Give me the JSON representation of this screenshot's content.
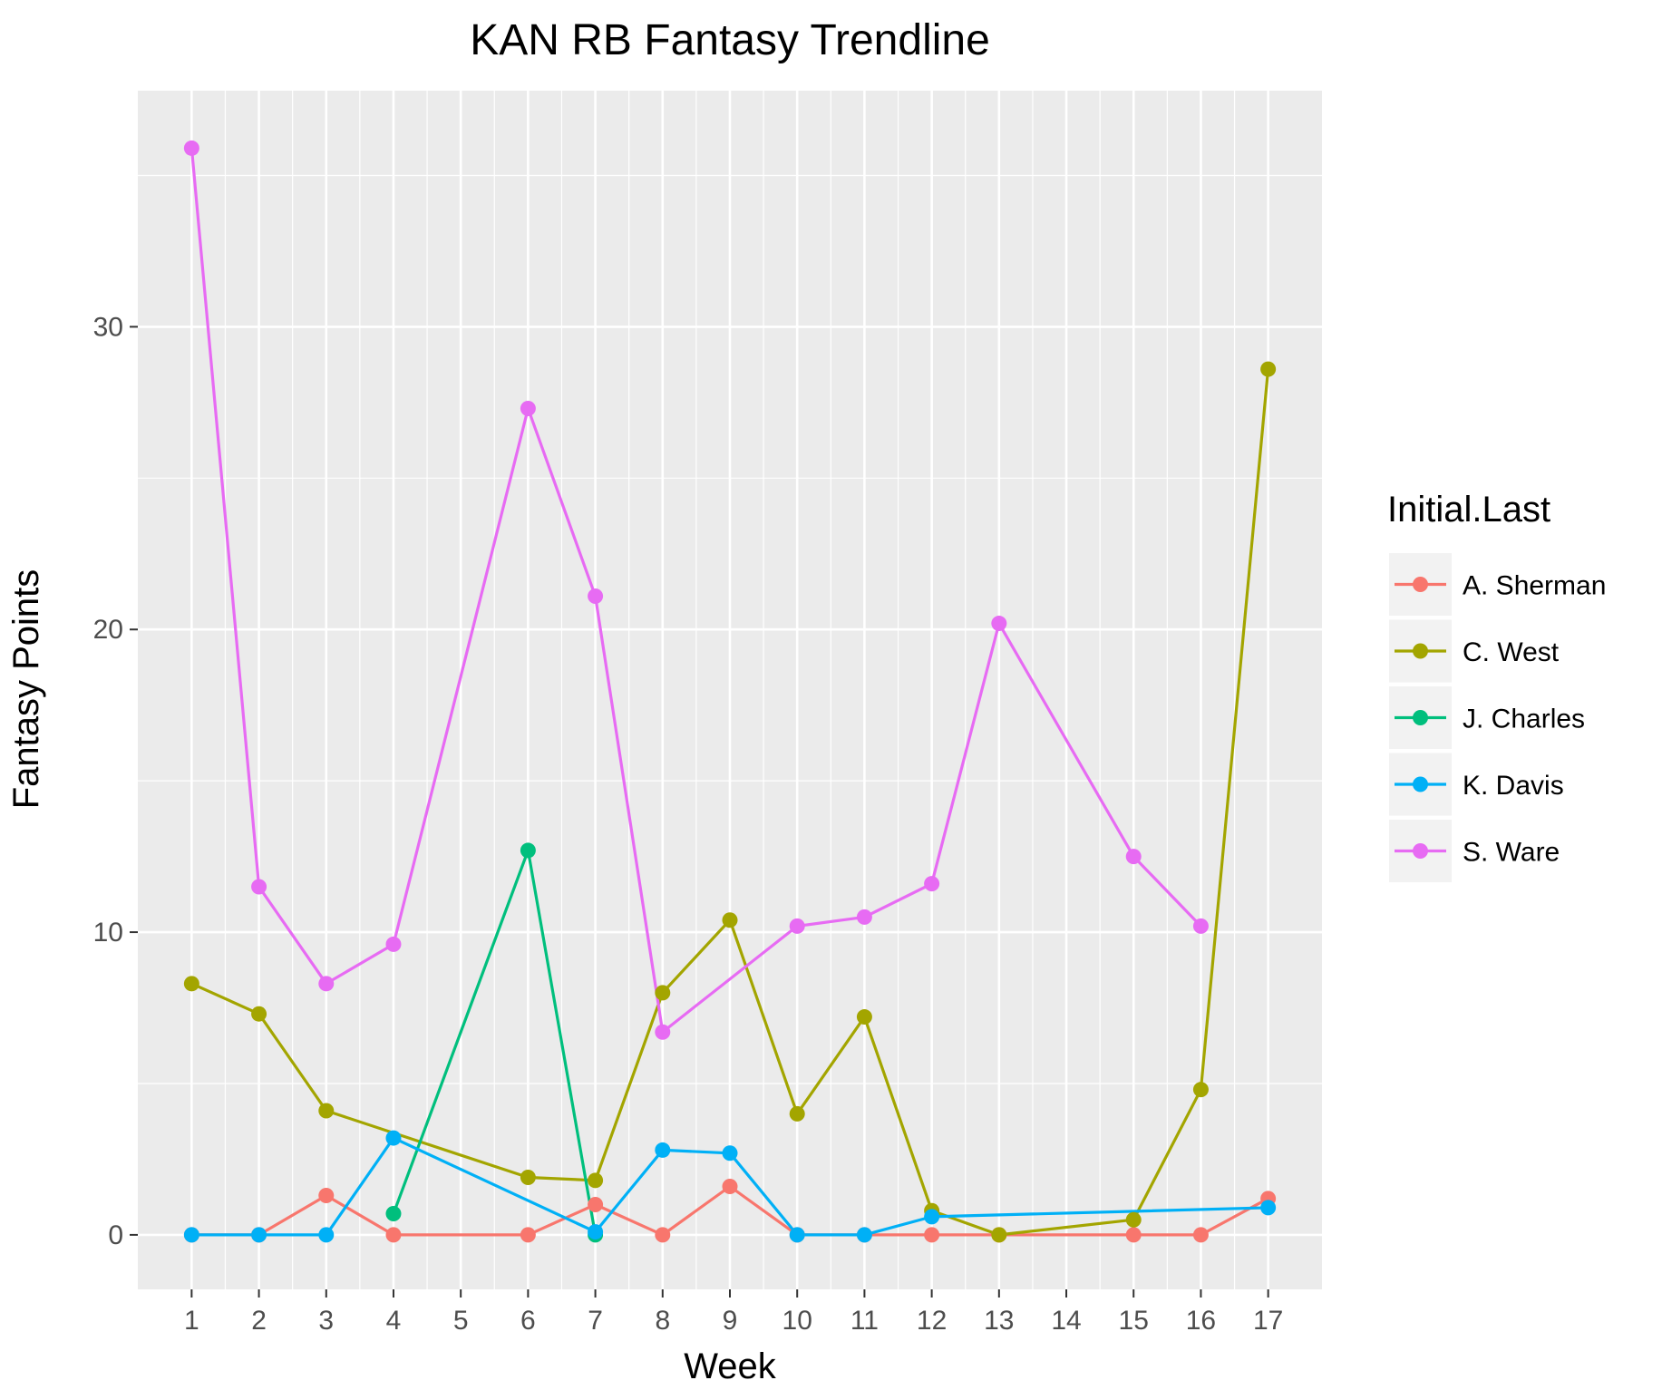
{
  "chart_data": {
    "type": "line",
    "title": "KAN RB Fantasy Trendline",
    "xlabel": "Week",
    "ylabel": "Fantasy Points",
    "x_ticks": [
      1,
      2,
      3,
      4,
      5,
      6,
      7,
      8,
      9,
      10,
      11,
      12,
      13,
      14,
      15,
      16,
      17
    ],
    "y_ticks": [
      0,
      10,
      20,
      30
    ],
    "xlim": [
      0.2,
      17.8
    ],
    "ylim": [
      -1.8,
      37.8
    ],
    "grid": true,
    "legend": {
      "title": "Initial.Last",
      "position": "right"
    },
    "series": [
      {
        "name": "A. Sherman",
        "color": "#F8766D",
        "points": [
          [
            1,
            0
          ],
          [
            2,
            0
          ],
          [
            3,
            1.3
          ],
          [
            4,
            0
          ],
          [
            6,
            0
          ],
          [
            7,
            1.0
          ],
          [
            8,
            0
          ],
          [
            9,
            1.6
          ],
          [
            10,
            0
          ],
          [
            11,
            0
          ],
          [
            12,
            0
          ],
          [
            13,
            0
          ],
          [
            15,
            0
          ],
          [
            16,
            0
          ],
          [
            17,
            1.2
          ]
        ]
      },
      {
        "name": "C. West",
        "color": "#A3A500",
        "points": [
          [
            1,
            8.3
          ],
          [
            2,
            7.3
          ],
          [
            3,
            4.1
          ],
          [
            6,
            1.9
          ],
          [
            7,
            1.8
          ],
          [
            8,
            8.0
          ],
          [
            9,
            10.4
          ],
          [
            10,
            4.0
          ],
          [
            11,
            7.2
          ],
          [
            12,
            0.8
          ],
          [
            13,
            0
          ],
          [
            15,
            0.5
          ],
          [
            16,
            4.8
          ],
          [
            17,
            28.6
          ]
        ]
      },
      {
        "name": "J. Charles",
        "color": "#00BF7D",
        "points": [
          [
            4,
            0.7
          ],
          [
            6,
            12.7
          ],
          [
            7,
            0
          ]
        ]
      },
      {
        "name": "K. Davis",
        "color": "#00B0F6",
        "points": [
          [
            1,
            0
          ],
          [
            2,
            0
          ],
          [
            3,
            0
          ],
          [
            4,
            3.2
          ],
          [
            7,
            0.1
          ],
          [
            8,
            2.8
          ],
          [
            9,
            2.7
          ],
          [
            10,
            0
          ],
          [
            11,
            0
          ],
          [
            12,
            0.6
          ],
          [
            17,
            0.9
          ]
        ]
      },
      {
        "name": "S. Ware",
        "color": "#E76BF3",
        "points": [
          [
            1,
            35.9
          ],
          [
            2,
            11.5
          ],
          [
            3,
            8.3
          ],
          [
            4,
            9.6
          ],
          [
            6,
            27.3
          ],
          [
            7,
            21.1
          ],
          [
            8,
            6.7
          ],
          [
            10,
            10.2
          ],
          [
            11,
            10.5
          ],
          [
            12,
            11.6
          ],
          [
            13,
            20.2
          ],
          [
            15,
            12.5
          ],
          [
            16,
            10.2
          ]
        ]
      }
    ]
  }
}
